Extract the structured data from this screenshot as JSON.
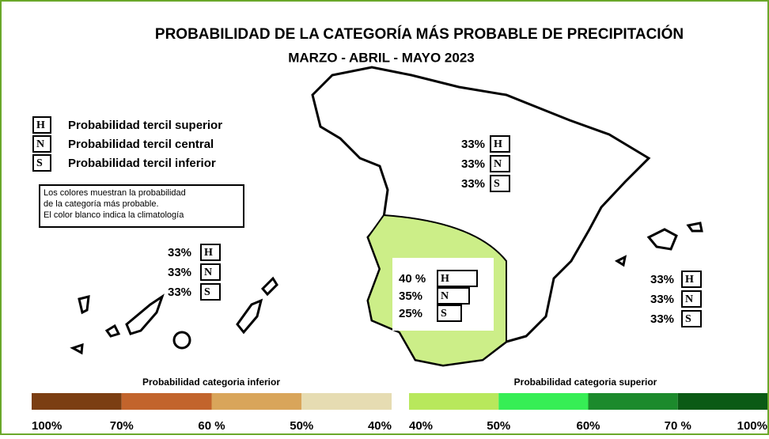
{
  "title": "PROBABILIDAD DE LA  CATEGORÍA MÁS PROBABLE DE PRECIPITACIÓN",
  "subtitle": "MARZO - ABRIL - MAYO 2023",
  "legend": [
    {
      "letter": "H",
      "text": "Probabilidad  tercil superior"
    },
    {
      "letter": "N",
      "text": "Probabilidad  tercil central"
    },
    {
      "letter": "S",
      "text": "Probabilidad  tercil inferior"
    }
  ],
  "note": [
    "Los colores muestran la probabilidad",
    "de la categoría más probable.",
    "El color blanco indica la climatología"
  ],
  "regions": [
    {
      "name_hint": "north",
      "items": [
        {
          "pct": "33%",
          "letter": "H"
        },
        {
          "pct": "33%",
          "letter": "N"
        },
        {
          "pct": "33%",
          "letter": "S"
        }
      ]
    },
    {
      "name_hint": "canarias",
      "items": [
        {
          "pct": "33%",
          "letter": "H"
        },
        {
          "pct": "33%",
          "letter": "N"
        },
        {
          "pct": "33%",
          "letter": "S"
        }
      ]
    },
    {
      "name_hint": "southwest",
      "items": [
        {
          "pct": "40 %",
          "letter": "H"
        },
        {
          "pct": "35%",
          "letter": "N"
        },
        {
          "pct": "25%",
          "letter": "S"
        }
      ]
    },
    {
      "name_hint": "baleares",
      "items": [
        {
          "pct": "33%",
          "letter": "H"
        },
        {
          "pct": "33%",
          "letter": "N"
        },
        {
          "pct": "33%",
          "letter": "S"
        }
      ]
    }
  ],
  "scales": [
    {
      "title": "Probabilidad categoria inferior",
      "labels": [
        "100%",
        "70%",
        "60 %",
        "50%",
        "40%"
      ],
      "colors": [
        "#7b3e12",
        "#c2642c",
        "#d9a55a",
        "#e6dcb2"
      ]
    },
    {
      "title": "Probabilidad categoria superior",
      "labels": [
        "40%",
        "50%",
        "60%",
        "70 %",
        "100%"
      ],
      "colors": [
        "#b8e85c",
        "#36ee55",
        "#1c8a2c",
        "#0b5a15"
      ]
    }
  ]
}
